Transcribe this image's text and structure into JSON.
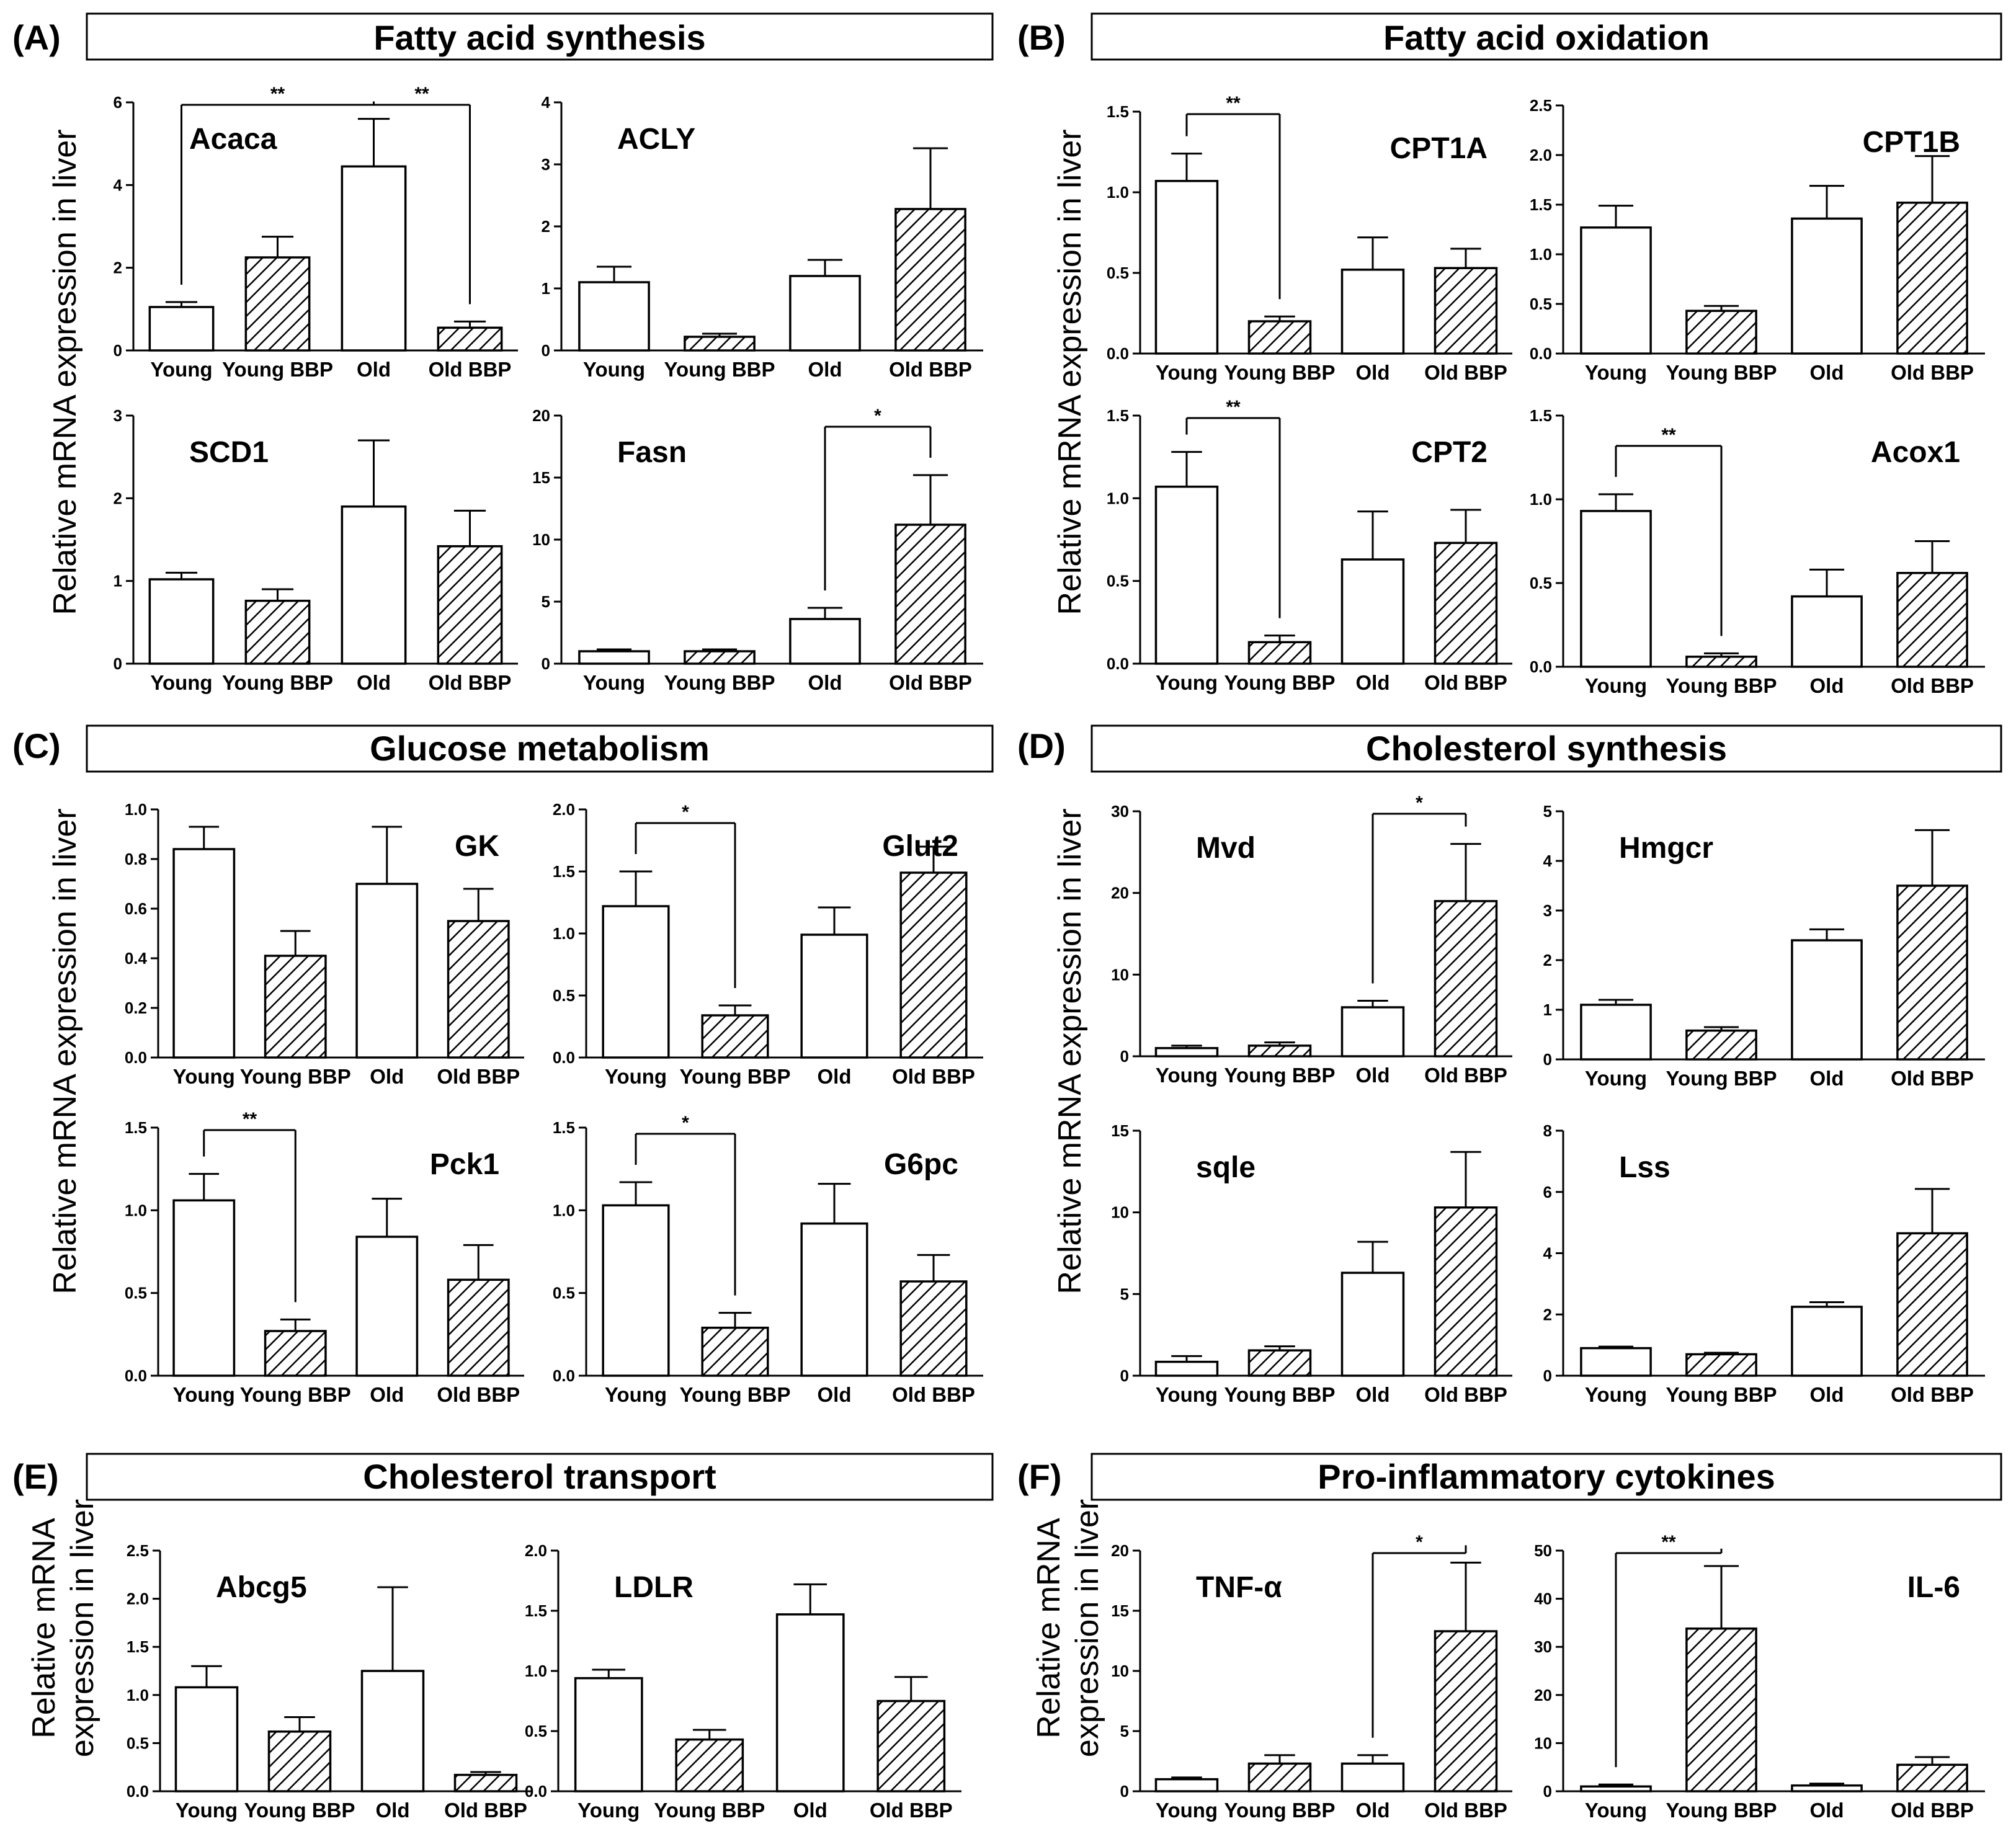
{
  "sections": [
    {
      "letter": "(A)",
      "title": "Fatty acid synthesis"
    },
    {
      "letter": "(B)",
      "title": "Fatty acid oxidation"
    },
    {
      "letter": "(C)",
      "title": "Glucose metabolism"
    },
    {
      "letter": "(D)",
      "title": "Cholesterol synthesis"
    },
    {
      "letter": "(E)",
      "title": "Cholesterol transport"
    },
    {
      "letter": "(F)",
      "title": "Pro-inflammatory cytokines"
    }
  ],
  "ylabels": {
    "single": "Relative mRNA expression in liver",
    "line1": "Relative mRNA",
    "line2": "expression in liver"
  },
  "chart_data": [
    {
      "type": "bar",
      "title": "Acaca",
      "categories": [
        "Young",
        "Young BBP",
        "Old",
        "Old BBP"
      ],
      "values": [
        1.05,
        2.25,
        4.45,
        0.55
      ],
      "errors": [
        0.12,
        0.5,
        1.15,
        0.15
      ],
      "yticks": [
        "0",
        "2",
        "4",
        "6"
      ],
      "ylim": [
        0,
        6
      ],
      "significance": [
        {
          "a": 0,
          "b": 2,
          "label": "**"
        },
        {
          "a": 2,
          "b": 3,
          "label": "**"
        }
      ]
    },
    {
      "type": "bar",
      "title": "ACLY",
      "categories": [
        "Young",
        "Young BBP",
        "Old",
        "Old BBP"
      ],
      "values": [
        1.1,
        0.22,
        1.2,
        2.28
      ],
      "errors": [
        0.25,
        0.05,
        0.26,
        0.98
      ],
      "yticks": [
        "0",
        "1",
        "2",
        "3",
        "4"
      ],
      "ylim": [
        0,
        4
      ],
      "significance": []
    },
    {
      "type": "bar",
      "title": "SCD1",
      "categories": [
        "Young",
        "Young BBP",
        "Old",
        "Old BBP"
      ],
      "values": [
        1.02,
        0.76,
        1.9,
        1.42
      ],
      "errors": [
        0.08,
        0.14,
        0.8,
        0.43
      ],
      "yticks": [
        "0",
        "1",
        "2",
        "3"
      ],
      "ylim": [
        0,
        3
      ],
      "significance": []
    },
    {
      "type": "bar",
      "title": "Fasn",
      "categories": [
        "Young",
        "Young BBP",
        "Old",
        "Old BBP"
      ],
      "values": [
        1.0,
        1.0,
        3.6,
        11.2
      ],
      "errors": [
        0.15,
        0.15,
        0.9,
        4.0
      ],
      "yticks": [
        "0",
        "5",
        "10",
        "15",
        "20"
      ],
      "ylim": [
        0,
        20
      ],
      "significance": [
        {
          "a": 2,
          "b": 3,
          "label": "*"
        }
      ]
    },
    {
      "type": "bar",
      "title": "CPT1A",
      "categories": [
        "Young",
        "Young BBP",
        "Old",
        "Old BBP"
      ],
      "values": [
        1.07,
        0.2,
        0.52,
        0.53
      ],
      "errors": [
        0.17,
        0.03,
        0.2,
        0.12
      ],
      "yticks": [
        "0.0",
        "0.5",
        "1.0",
        "1.5"
      ],
      "ylim": [
        0,
        1.5
      ],
      "significance": [
        {
          "a": 0,
          "b": 1,
          "label": "**"
        }
      ]
    },
    {
      "type": "bar",
      "title": "CPT1B",
      "categories": [
        "Young",
        "Young BBP",
        "Old",
        "Old BBP"
      ],
      "values": [
        1.27,
        0.43,
        1.36,
        1.52
      ],
      "errors": [
        0.22,
        0.05,
        0.33,
        0.47
      ],
      "yticks": [
        "0.0",
        "0.5",
        "1.0",
        "1.5",
        "2.0",
        "2.5"
      ],
      "ylim": [
        0,
        2.5
      ],
      "significance": []
    },
    {
      "type": "bar",
      "title": "CPT2",
      "categories": [
        "Young",
        "Young BBP",
        "Old",
        "Old BBP"
      ],
      "values": [
        1.07,
        0.13,
        0.63,
        0.73
      ],
      "errors": [
        0.21,
        0.04,
        0.29,
        0.2
      ],
      "yticks": [
        "0.0",
        "0.5",
        "1.0",
        "1.5"
      ],
      "ylim": [
        0,
        1.5
      ],
      "significance": [
        {
          "a": 0,
          "b": 1,
          "label": "**"
        }
      ]
    },
    {
      "type": "bar",
      "title": "Acox1",
      "categories": [
        "Young",
        "Young BBP",
        "Old",
        "Old BBP"
      ],
      "values": [
        0.93,
        0.06,
        0.42,
        0.56
      ],
      "errors": [
        0.1,
        0.02,
        0.16,
        0.19
      ],
      "yticks": [
        "0.0",
        "0.5",
        "1.0",
        "1.5"
      ],
      "ylim": [
        0,
        1.5
      ],
      "significance": [
        {
          "a": 0,
          "b": 1,
          "label": "**"
        }
      ]
    },
    {
      "type": "bar",
      "title": "GK",
      "categories": [
        "Young",
        "Young BBP",
        "Old",
        "Old BBP"
      ],
      "values": [
        0.84,
        0.41,
        0.7,
        0.55
      ],
      "errors": [
        0.09,
        0.1,
        0.23,
        0.13
      ],
      "yticks": [
        "0.0",
        "0.2",
        "0.4",
        "0.6",
        "0.8",
        "1.0"
      ],
      "ylim": [
        0,
        1.0
      ],
      "significance": []
    },
    {
      "type": "bar",
      "title": "Glut2",
      "categories": [
        "Young",
        "Young BBP",
        "Old",
        "Old BBP"
      ],
      "values": [
        1.22,
        0.34,
        0.99,
        1.49
      ],
      "errors": [
        0.28,
        0.08,
        0.22,
        0.21
      ],
      "yticks": [
        "0.0",
        "0.5",
        "1.0",
        "1.5",
        "2.0"
      ],
      "ylim": [
        0,
        2.0
      ],
      "significance": [
        {
          "a": 0,
          "b": 1,
          "label": "*"
        }
      ]
    },
    {
      "type": "bar",
      "title": "Pck1",
      "categories": [
        "Young",
        "Young BBP",
        "Old",
        "Old BBP"
      ],
      "values": [
        1.06,
        0.27,
        0.84,
        0.58
      ],
      "errors": [
        0.16,
        0.07,
        0.23,
        0.21
      ],
      "yticks": [
        "0.0",
        "0.5",
        "1.0",
        "1.5"
      ],
      "ylim": [
        0,
        1.5
      ],
      "significance": [
        {
          "a": 0,
          "b": 1,
          "label": "**"
        }
      ]
    },
    {
      "type": "bar",
      "title": "G6pc",
      "categories": [
        "Young",
        "Young BBP",
        "Old",
        "Old BBP"
      ],
      "values": [
        1.03,
        0.29,
        0.92,
        0.57
      ],
      "errors": [
        0.14,
        0.09,
        0.24,
        0.16
      ],
      "yticks": [
        "0.0",
        "0.5",
        "1.0",
        "1.5"
      ],
      "ylim": [
        0,
        1.5
      ],
      "significance": [
        {
          "a": 0,
          "b": 1,
          "label": "*"
        }
      ]
    },
    {
      "type": "bar",
      "title": "Mvd",
      "categories": [
        "Young",
        "Young BBP",
        "Old",
        "Old BBP"
      ],
      "values": [
        1.0,
        1.3,
        6.0,
        19.0
      ],
      "errors": [
        0.3,
        0.4,
        0.8,
        7.0
      ],
      "yticks": [
        "0",
        "10",
        "20",
        "30"
      ],
      "ylim": [
        0,
        30
      ],
      "significance": [
        {
          "a": 2,
          "b": 3,
          "label": "*"
        }
      ]
    },
    {
      "type": "bar",
      "title": "Hmgcr",
      "categories": [
        "Young",
        "Young BBP",
        "Old",
        "Old BBP"
      ],
      "values": [
        1.1,
        0.58,
        2.4,
        3.5
      ],
      "errors": [
        0.1,
        0.07,
        0.22,
        1.12
      ],
      "yticks": [
        "0",
        "1",
        "2",
        "3",
        "4",
        "5"
      ],
      "ylim": [
        0,
        5
      ],
      "significance": []
    },
    {
      "type": "bar",
      "title": "sqle",
      "categories": [
        "Young",
        "Young BBP",
        "Old",
        "Old BBP"
      ],
      "values": [
        0.85,
        1.55,
        6.3,
        10.3
      ],
      "errors": [
        0.35,
        0.25,
        1.9,
        3.4
      ],
      "yticks": [
        "0",
        "5",
        "10",
        "15"
      ],
      "ylim": [
        0,
        15
      ],
      "significance": []
    },
    {
      "type": "bar",
      "title": "Lss",
      "categories": [
        "Young",
        "Young BBP",
        "Old",
        "Old BBP"
      ],
      "values": [
        0.9,
        0.7,
        2.25,
        4.65
      ],
      "errors": [
        0.05,
        0.05,
        0.15,
        1.45
      ],
      "yticks": [
        "0",
        "2",
        "4",
        "6",
        "8"
      ],
      "ylim": [
        0,
        8
      ],
      "significance": []
    },
    {
      "type": "bar",
      "title": "Abcg5",
      "categories": [
        "Young",
        "Young BBP",
        "Old",
        "Old BBP"
      ],
      "values": [
        1.08,
        0.62,
        1.25,
        0.17
      ],
      "errors": [
        0.22,
        0.15,
        0.87,
        0.03
      ],
      "yticks": [
        "0.0",
        "0.5",
        "1.0",
        "1.5",
        "2.0",
        "2.5"
      ],
      "ylim": [
        0,
        2.5
      ],
      "significance": []
    },
    {
      "type": "bar",
      "title": "LDLR",
      "categories": [
        "Young",
        "Young BBP",
        "Old",
        "Old BBP"
      ],
      "values": [
        0.94,
        0.43,
        1.47,
        0.75
      ],
      "errors": [
        0.07,
        0.08,
        0.25,
        0.2
      ],
      "yticks": [
        "0.0",
        "0.5",
        "1.0",
        "1.5",
        "2.0"
      ],
      "ylim": [
        0,
        2.0
      ],
      "significance": []
    },
    {
      "type": "bar",
      "title": "TNF-α",
      "categories": [
        "Young",
        "Young BBP",
        "Old",
        "Old BBP"
      ],
      "values": [
        1.0,
        2.3,
        2.3,
        13.3
      ],
      "errors": [
        0.15,
        0.7,
        0.7,
        5.7
      ],
      "yticks": [
        "0",
        "5",
        "10",
        "15",
        "20"
      ],
      "ylim": [
        0,
        20
      ],
      "significance": [
        {
          "a": 2,
          "b": 3,
          "label": "*"
        }
      ]
    },
    {
      "type": "bar",
      "title": "IL-6",
      "categories": [
        "Young",
        "Young BBP",
        "Old",
        "Old BBP"
      ],
      "values": [
        1.0,
        33.8,
        1.2,
        5.5
      ],
      "errors": [
        0.4,
        13.0,
        0.4,
        1.6
      ],
      "yticks": [
        "0",
        "10",
        "20",
        "30",
        "40",
        "50"
      ],
      "ylim": [
        0,
        50
      ],
      "significance": [
        {
          "a": 0,
          "b": 1,
          "label": "**"
        }
      ]
    }
  ]
}
